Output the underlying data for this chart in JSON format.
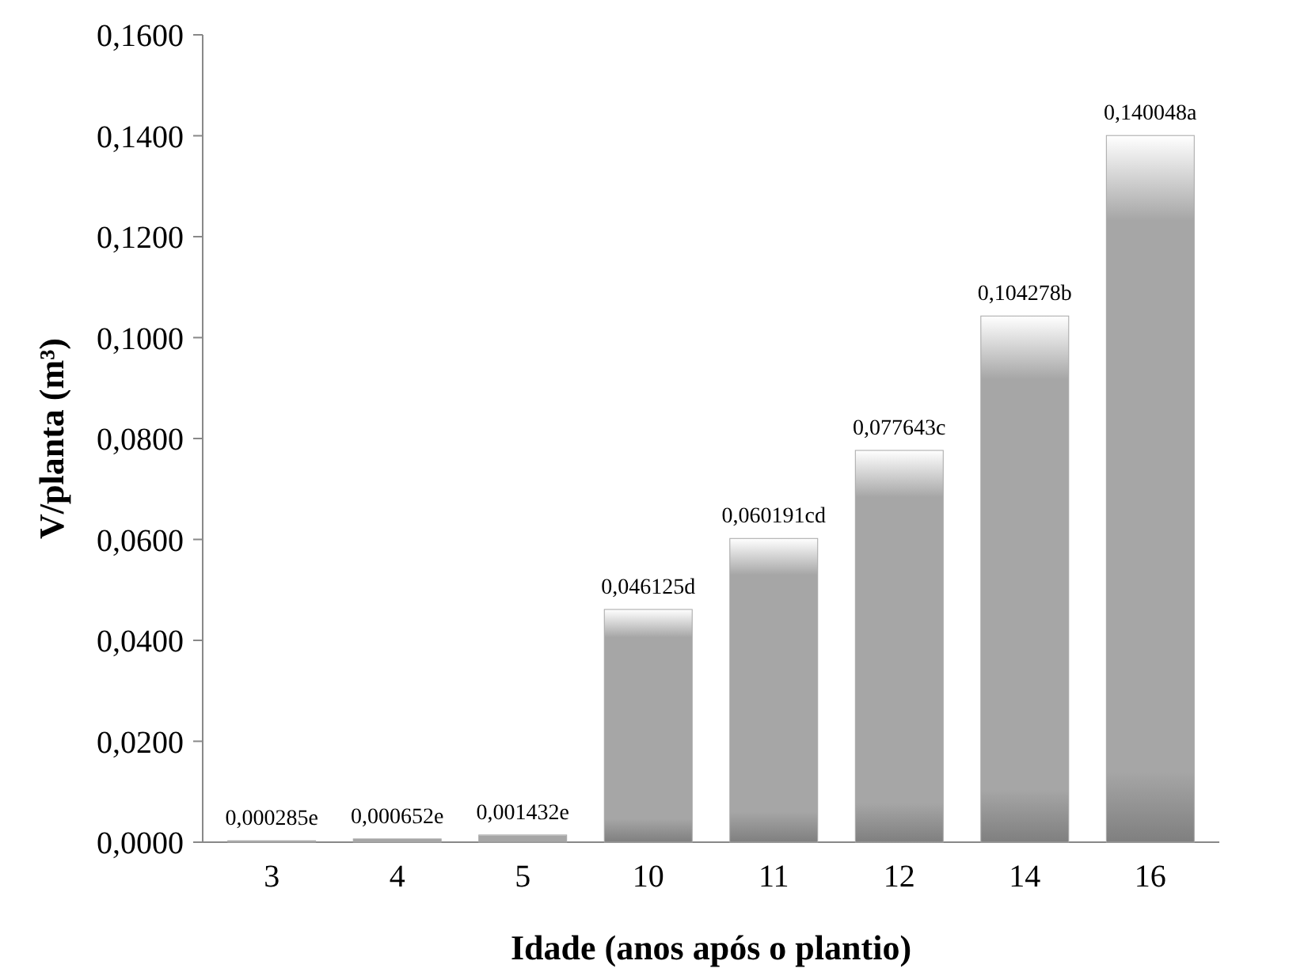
{
  "chart_data": {
    "type": "bar",
    "xlabel": "Idade (anos após o plantio)",
    "ylabel": "V/planta (m³)",
    "categories": [
      "3",
      "4",
      "5",
      "10",
      "11",
      "12",
      "14",
      "16"
    ],
    "values": [
      0.000285,
      0.000652,
      0.001432,
      0.046125,
      0.060191,
      0.077643,
      0.104278,
      0.140048
    ],
    "value_labels": [
      "0,000285e",
      "0,000652e",
      "0,001432e",
      "0,046125d",
      "0,060191cd",
      "0,077643c",
      "0,104278b",
      "0,140048a"
    ],
    "color": "#a6a6a6",
    "ylim": [
      0,
      0.16
    ],
    "yticks": [
      {
        "value": 0,
        "label": "0,0000"
      },
      {
        "value": 0.02,
        "label": "0,0200"
      },
      {
        "value": 0.04,
        "label": "0,0400"
      },
      {
        "value": 0.06,
        "label": "0,0600"
      },
      {
        "value": 0.08,
        "label": "0,0800"
      },
      {
        "value": 0.1,
        "label": "0,1000"
      },
      {
        "value": 0.12,
        "label": "0,1200"
      },
      {
        "value": 0.14,
        "label": "0,1400"
      },
      {
        "value": 0.16,
        "label": "0,1600"
      }
    ],
    "grid": false
  }
}
